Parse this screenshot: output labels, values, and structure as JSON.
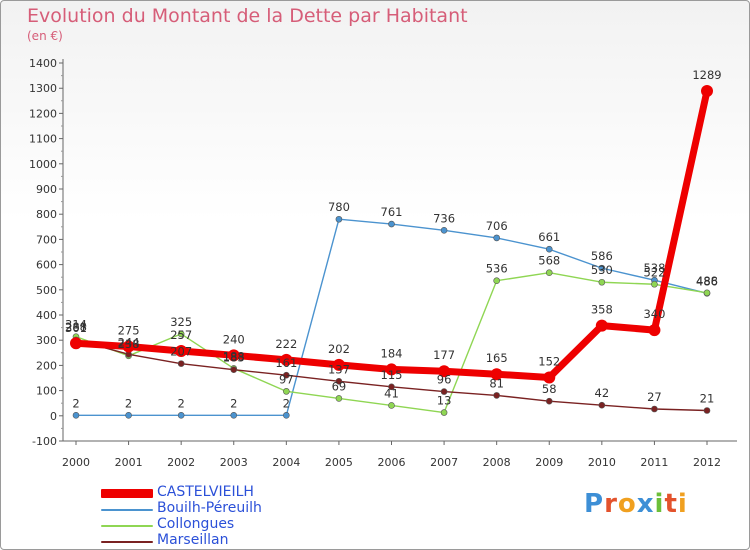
{
  "header": {
    "title": "Evolution du Montant de la Dette par Habitant",
    "unit": "(en €)"
  },
  "brand": {
    "text": "Proxiti"
  },
  "chart_data": {
    "type": "line",
    "title": "Evolution du Montant de la Dette par Habitant",
    "subtitle": "(en €)",
    "x": [
      "2000",
      "2001",
      "2002",
      "2003",
      "2004",
      "2005",
      "2006",
      "2007",
      "2008",
      "2009",
      "2010",
      "2011",
      "2012"
    ],
    "y_ticks": [
      "-100",
      "0",
      "100",
      "200",
      "300",
      "400",
      "500",
      "600",
      "700",
      "800",
      "900",
      "1000",
      "1100",
      "1200",
      "1300",
      "1400"
    ],
    "ylim": [
      -100,
      1400
    ],
    "grid": false,
    "legend": "bottom-left",
    "series": [
      {
        "name": "CASTELVIEILH",
        "color": "#ee0000",
        "values": [
          288,
          275,
          257,
          240,
          222,
          202,
          184,
          177,
          165,
          152,
          358,
          340,
          1289
        ],
        "labels": [
          "288",
          "275",
          "257",
          "240",
          "222",
          "202",
          "184",
          "177",
          "165",
          "152",
          "358",
          "340",
          "1289"
        ]
      },
      {
        "name": "Bouilh-Péreuilh",
        "color": "#4b93cf",
        "values": [
          2,
          2,
          2,
          2,
          2,
          780,
          761,
          736,
          706,
          661,
          586,
          538,
          486
        ],
        "labels": [
          "2",
          "2",
          "2",
          "2",
          "2",
          "780",
          "761",
          "736",
          "706",
          "661",
          "586",
          "538",
          "486"
        ]
      },
      {
        "name": "Collongues",
        "color": "#8fd653",
        "values": [
          314,
          238,
          325,
          188,
          97,
          69,
          41,
          13,
          536,
          568,
          530,
          522,
          488
        ],
        "labels": [
          "314",
          "238",
          "325",
          "188",
          "97",
          "69",
          "41",
          "13",
          "536",
          "568",
          "530",
          "522",
          "488"
        ]
      },
      {
        "name": "Marseillan",
        "color": "#7a2222",
        "values": [
          301,
          244,
          207,
          183,
          161,
          137,
          115,
          96,
          81,
          58,
          42,
          27,
          21
        ],
        "labels": [
          "301",
          "244",
          "207",
          "183",
          "161",
          "137",
          "115",
          "96",
          "81",
          "58",
          "42",
          "27",
          "21"
        ]
      }
    ]
  }
}
